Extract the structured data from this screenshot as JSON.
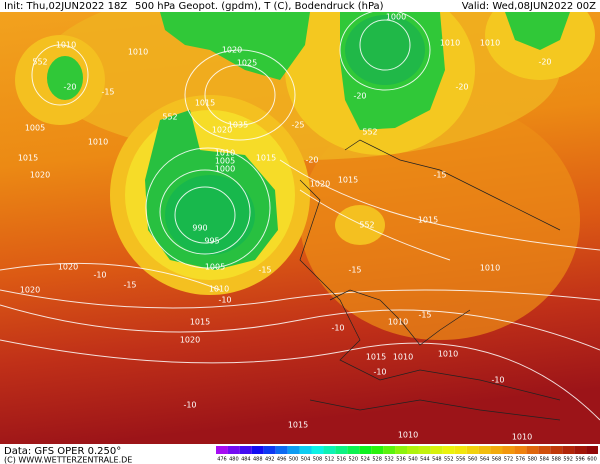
{
  "header": {
    "init": "Init: Thu,02JUN2022 18Z",
    "title": "500 hPa Geopot. (gpdm), T (C), Bodendruck (hPa)",
    "valid": "Valid: Wed,08JUN2022 00Z"
  },
  "footer": {
    "data": "Data: GFS OPER 0.250°",
    "source": "(C) WWW.WETTERZENTRALE.DE"
  },
  "colorbar": {
    "labels": [
      476,
      480,
      484,
      488,
      492,
      496,
      500,
      504,
      508,
      512,
      516,
      520,
      524,
      528,
      532,
      536,
      540,
      544,
      548,
      552,
      556,
      560,
      564,
      568,
      572,
      576,
      580,
      584,
      588,
      592,
      596,
      600
    ]
  },
  "map_labels": [
    "1010",
    "552",
    "1010",
    "1020",
    "1025",
    "1015",
    "1020",
    "1035",
    "1010",
    "1005",
    "1000",
    "1015",
    "990",
    "995",
    "1005",
    "1000",
    "1010",
    "1010",
    "1010",
    "1005",
    "1015",
    "1020",
    "1020",
    "1020",
    "1010",
    "1020",
    "1015",
    "1015",
    "1010",
    "1015",
    "1020",
    "1010",
    "1015",
    "1010",
    "1010",
    "1015",
    "1010",
    "1010",
    "552",
    "552",
    "552",
    "-20",
    "-15",
    "-20",
    "-25",
    "-20",
    "-20",
    "-20",
    "-15",
    "-15",
    "-15",
    "-10",
    "-10",
    "-15",
    "-10",
    "-15",
    "-10",
    "-10",
    "-10"
  ]
}
